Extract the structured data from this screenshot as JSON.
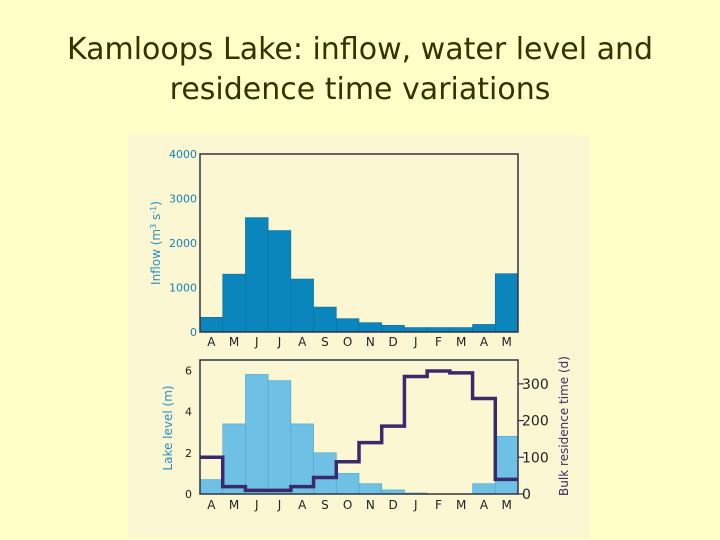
{
  "title_line1": "Kamloops Lake: inflow, water level and",
  "title_line2": "residence time variations",
  "colors": {
    "inflow_bar": "#0a86bd",
    "inflow_axis_text": "#1a82b8",
    "level_bar": "#6ec0e4",
    "residence_line": "#3b2a6b",
    "frame": "#333344",
    "ylabel_text": "#2a8fc4",
    "y2label_text": "#3b2a6b"
  },
  "chart_data": [
    {
      "type": "bar",
      "categories": [
        "A",
        "M",
        "J",
        "J",
        "A",
        "S",
        "O",
        "N",
        "D",
        "J",
        "F",
        "M",
        "A",
        "M"
      ],
      "values": [
        330,
        1300,
        2570,
        2280,
        1190,
        560,
        300,
        210,
        150,
        100,
        100,
        100,
        170,
        1310
      ],
      "xlabel": "",
      "ylabel": "Inflow (m",
      "ylabel_sup1": "3",
      "ylabel_mid": " s",
      "ylabel_sup2": "-1",
      "ylabel_end": ")",
      "ylim": [
        0,
        4000
      ],
      "yticks": [
        "0",
        "1000",
        "2000",
        "3000",
        "4000"
      ],
      "grid": false
    },
    {
      "type": "bar",
      "categories": [
        "A",
        "M",
        "J",
        "J",
        "A",
        "S",
        "O",
        "N",
        "D",
        "J",
        "F",
        "M",
        "A",
        "M"
      ],
      "series": [
        {
          "name": "",
          "axis": "left",
          "type": "bar",
          "values": [
            0.7,
            3.4,
            5.8,
            5.5,
            3.4,
            2.0,
            1.0,
            0.5,
            0.2,
            0.05,
            0.0,
            0.0,
            0.5,
            2.8
          ]
        },
        {
          "name": "",
          "axis": "right",
          "type": "step",
          "values": [
            100,
            20,
            10,
            10,
            20,
            45,
            88,
            140,
            185,
            320,
            335,
            330,
            260,
            40
          ]
        }
      ],
      "ylabel": "Lake level (m)",
      "ylim": [
        0,
        6.5
      ],
      "yticks": [
        "0",
        "2",
        "4",
        "6"
      ],
      "y2label": "Bulk residence time (d)",
      "y2lim": [
        0,
        365
      ],
      "y2ticks": [
        "0",
        "100",
        "200",
        "300"
      ],
      "grid": false
    }
  ]
}
